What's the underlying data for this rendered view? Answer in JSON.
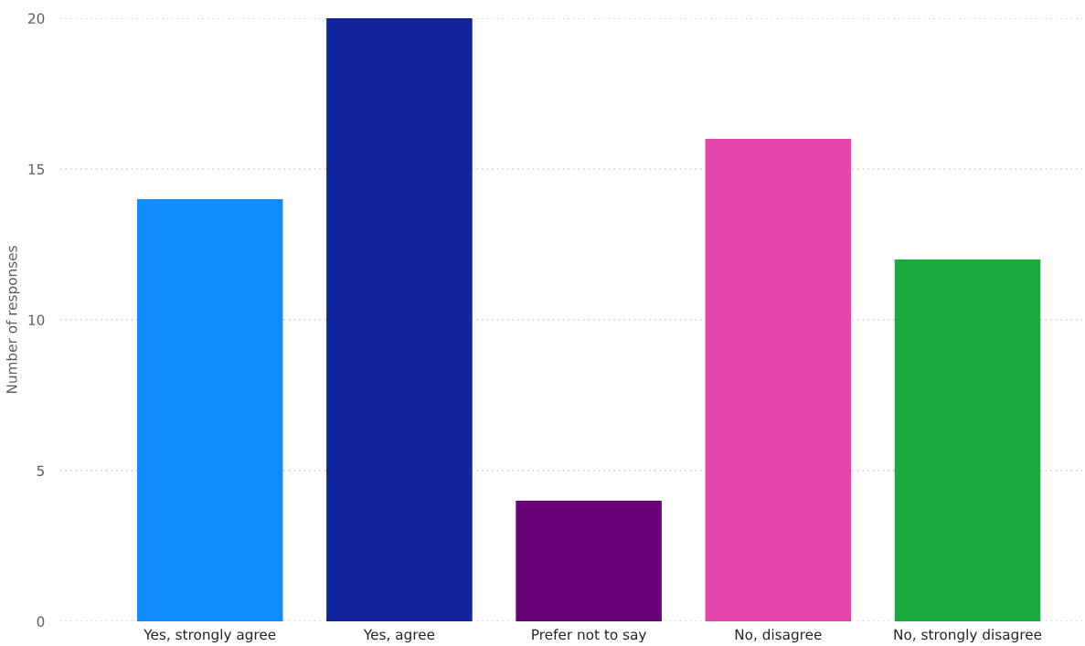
{
  "chart_data": {
    "type": "bar",
    "ylabel": "Number of responses",
    "categories": [
      "Yes, strongly agree",
      "Yes, agree",
      "Prefer not to say",
      "No, disagree",
      "No, strongly disagree"
    ],
    "values": [
      14,
      20,
      4,
      16,
      12
    ],
    "colors": [
      "#118dff",
      "#12239e",
      "#6b007b",
      "#e645ab",
      "#1aab40"
    ],
    "ylim": [
      0,
      20
    ],
    "yticks": [
      0,
      5,
      10,
      15,
      20
    ],
    "grid": "y"
  }
}
